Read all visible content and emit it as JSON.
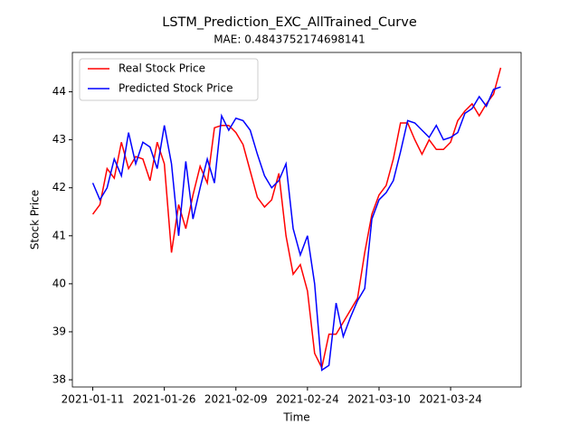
{
  "chart_data": {
    "type": "line",
    "title": "LSTM_Prediction_EXC_AllTrained_Curve",
    "subtitle": "MAE: 0.4843752174698141",
    "x_label": "Time",
    "y_label": "Stock Price",
    "categories": [
      "2021-01-11",
      null,
      null,
      null,
      null,
      null,
      null,
      null,
      null,
      null,
      "2021-01-26",
      null,
      null,
      null,
      null,
      null,
      null,
      null,
      null,
      null,
      "2021-02-09",
      null,
      null,
      null,
      null,
      null,
      null,
      null,
      null,
      null,
      "2021-02-24",
      null,
      null,
      null,
      null,
      null,
      null,
      null,
      null,
      null,
      "2021-03-10",
      null,
      null,
      null,
      null,
      null,
      null,
      null,
      null,
      null,
      "2021-03-24",
      null,
      null,
      null,
      null,
      null,
      null,
      null
    ],
    "series": [
      {
        "name": "Real Stock Price",
        "color": "#ff0000",
        "values": [
          41.45,
          41.65,
          42.4,
          42.2,
          42.95,
          42.4,
          42.65,
          42.6,
          42.15,
          42.95,
          42.5,
          40.65,
          41.65,
          41.15,
          41.85,
          42.45,
          42.1,
          43.25,
          43.3,
          43.3,
          43.15,
          42.9,
          42.35,
          41.8,
          41.6,
          41.75,
          42.3,
          41.0,
          40.2,
          40.4,
          39.85,
          38.55,
          38.25,
          38.95,
          38.95,
          39.2,
          39.45,
          39.7,
          40.65,
          41.45,
          41.85,
          42.05,
          42.6,
          43.35,
          43.35,
          43.0,
          42.7,
          43.0,
          42.8,
          42.8,
          42.95,
          43.4,
          43.6,
          43.75,
          43.5,
          43.75,
          43.95,
          44.5
        ]
      },
      {
        "name": "Predicted Stock Price",
        "color": "#0000ff",
        "values": [
          42.1,
          41.75,
          42.0,
          42.6,
          42.25,
          43.15,
          42.5,
          42.95,
          42.85,
          42.4,
          43.3,
          42.5,
          41.0,
          42.55,
          41.35,
          42.0,
          42.6,
          42.1,
          43.5,
          43.2,
          43.45,
          43.4,
          43.2,
          42.7,
          42.25,
          42.0,
          42.15,
          42.5,
          41.15,
          40.6,
          41.0,
          40.0,
          38.2,
          38.3,
          39.6,
          38.9,
          39.3,
          39.65,
          39.9,
          41.35,
          41.75,
          41.9,
          42.15,
          42.75,
          43.4,
          43.35,
          43.2,
          43.05,
          43.3,
          43.0,
          43.05,
          43.15,
          43.55,
          43.65,
          43.9,
          43.7,
          44.05,
          44.1
        ]
      }
    ],
    "ylim": [
      37.85,
      44.82
    ],
    "yticks": [
      38,
      39,
      40,
      41,
      42,
      43,
      44
    ],
    "grid": false,
    "legend": "upper left"
  }
}
